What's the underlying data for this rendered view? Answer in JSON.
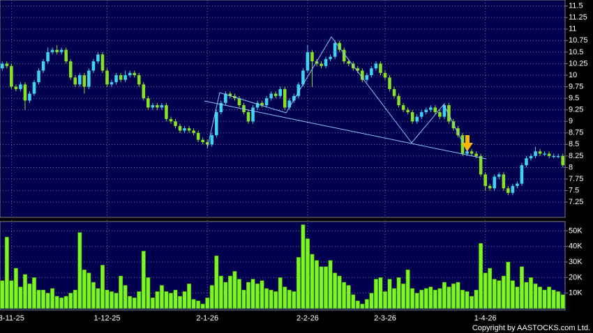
{
  "chart_data": [
    {
      "type": "candlestick",
      "categories": [
        null,
        null,
        "3-11-25",
        null,
        null,
        null,
        null,
        null,
        null,
        null,
        null,
        null,
        null,
        null,
        null,
        null,
        null,
        null,
        null,
        null,
        null,
        null,
        null,
        "1-12-25",
        null,
        null,
        null,
        null,
        null,
        null,
        null,
        null,
        null,
        null,
        null,
        null,
        null,
        null,
        null,
        null,
        null,
        null,
        null,
        null,
        null,
        "2-1-26",
        null,
        null,
        null,
        null,
        null,
        null,
        null,
        null,
        null,
        null,
        null,
        null,
        null,
        null,
        null,
        null,
        null,
        null,
        null,
        null,
        null,
        "2-2-26",
        null,
        null,
        null,
        null,
        null,
        null,
        null,
        null,
        null,
        null,
        null,
        null,
        null,
        null,
        null,
        null,
        "2-3-26",
        null,
        null,
        null,
        null,
        null,
        null,
        null,
        null,
        null,
        null,
        null,
        null,
        null,
        null,
        null,
        null,
        null,
        null,
        null,
        null,
        null,
        "1-4-26",
        null,
        null,
        null,
        null,
        null,
        null,
        null,
        null,
        null,
        null,
        null,
        null,
        null,
        null,
        null,
        null,
        null
      ],
      "open": [
        10.15,
        10.25,
        10.2,
        9.75,
        9.7,
        9.8,
        9.45,
        9.6,
        9.85,
        10.1,
        10.3,
        10.5,
        10.55,
        10.5,
        10.55,
        10.3,
        9.95,
        9.8,
        10.0,
        9.75,
        10.1,
        10.3,
        10.45,
        10.1,
        9.8,
        9.85,
        10.0,
        9.9,
        10.0,
        10.05,
        10.0,
        9.8,
        9.5,
        9.3,
        9.35,
        9.3,
        9.35,
        9.05,
        9.0,
        8.9,
        8.8,
        8.85,
        8.8,
        8.75,
        8.6,
        8.55,
        8.5,
        8.7,
        9.2,
        9.4,
        9.6,
        9.55,
        9.5,
        9.35,
        9.2,
        9.0,
        9.3,
        9.4,
        9.35,
        9.5,
        9.6,
        9.55,
        9.7,
        9.3,
        9.45,
        9.55,
        9.8,
        10.1,
        10.5,
        10.3,
        10.25,
        10.2,
        10.35,
        10.4,
        10.7,
        10.55,
        10.3,
        10.25,
        10.15,
        10.1,
        9.9,
        10.0,
        10.15,
        10.25,
        10.05,
        9.95,
        9.7,
        9.55,
        9.35,
        9.25,
        9.2,
        9.0,
        9.1,
        9.2,
        9.25,
        9.3,
        9.2,
        9.1,
        9.35,
        9.0,
        8.85,
        8.7,
        8.3,
        8.35,
        8.3,
        8.25,
        7.85,
        7.6,
        7.55,
        7.8,
        7.85,
        7.55,
        7.45,
        7.6,
        7.65,
        8.05,
        8.2,
        8.25,
        8.35,
        8.3,
        8.3,
        8.25,
        8.25,
        8.25
      ],
      "high": [
        10.3,
        10.3,
        10.25,
        9.8,
        9.85,
        9.85,
        9.65,
        9.9,
        10.15,
        10.35,
        10.6,
        10.6,
        10.65,
        10.6,
        10.6,
        10.35,
        10.0,
        10.05,
        10.05,
        10.15,
        10.35,
        10.5,
        10.5,
        10.15,
        9.9,
        10.05,
        10.05,
        10.1,
        10.1,
        10.1,
        10.05,
        9.85,
        9.55,
        9.4,
        9.4,
        9.4,
        9.4,
        9.1,
        9.05,
        8.95,
        8.9,
        8.9,
        8.85,
        8.8,
        8.65,
        8.6,
        8.75,
        9.25,
        9.45,
        9.65,
        9.65,
        9.6,
        9.55,
        9.4,
        9.25,
        9.35,
        9.45,
        9.45,
        9.55,
        9.65,
        9.65,
        9.75,
        9.75,
        9.5,
        9.6,
        9.85,
        10.15,
        10.65,
        10.55,
        10.35,
        10.3,
        10.4,
        10.45,
        10.75,
        10.75,
        10.6,
        10.35,
        10.3,
        10.2,
        10.15,
        10.05,
        10.2,
        10.3,
        10.3,
        10.1,
        10.0,
        9.75,
        9.6,
        9.4,
        9.3,
        9.25,
        9.15,
        9.25,
        9.3,
        9.35,
        9.35,
        9.25,
        9.4,
        9.4,
        9.05,
        8.9,
        8.75,
        8.4,
        8.4,
        8.35,
        8.3,
        7.9,
        7.65,
        7.85,
        7.9,
        7.9,
        7.6,
        7.65,
        7.7,
        8.1,
        8.25,
        8.3,
        8.45,
        8.4,
        8.35,
        8.35,
        8.3,
        8.3,
        8.3
      ],
      "low": [
        10.1,
        10.15,
        9.7,
        9.65,
        9.65,
        9.25,
        9.4,
        9.55,
        9.8,
        10.05,
        10.25,
        10.45,
        10.45,
        10.45,
        10.25,
        9.9,
        9.75,
        9.75,
        9.6,
        9.7,
        10.05,
        10.25,
        10.05,
        9.75,
        9.75,
        9.8,
        9.85,
        9.85,
        9.95,
        9.95,
        9.75,
        9.45,
        9.25,
        9.25,
        9.25,
        9.25,
        9.0,
        8.95,
        8.85,
        8.75,
        8.75,
        8.75,
        8.7,
        8.55,
        8.5,
        8.45,
        8.45,
        8.65,
        9.15,
        9.35,
        9.5,
        9.45,
        9.3,
        9.15,
        8.95,
        8.95,
        9.25,
        9.3,
        9.3,
        9.45,
        9.5,
        9.5,
        9.25,
        9.25,
        9.4,
        9.5,
        9.75,
        10.05,
        9.75,
        10.2,
        10.15,
        10.15,
        10.3,
        10.35,
        10.5,
        10.25,
        10.2,
        10.1,
        10.05,
        9.85,
        9.85,
        9.95,
        10.1,
        10.0,
        9.9,
        9.65,
        9.5,
        9.3,
        9.2,
        9.15,
        8.95,
        8.95,
        9.05,
        9.15,
        9.2,
        9.15,
        9.05,
        9.05,
        8.95,
        8.8,
        8.65,
        8.25,
        8.25,
        8.25,
        8.2,
        7.8,
        7.5,
        7.5,
        7.5,
        7.75,
        7.5,
        7.4,
        7.4,
        7.55,
        7.6,
        8.0,
        8.15,
        8.2,
        8.25,
        8.25,
        8.2,
        8.2,
        8.2,
        8.0
      ],
      "close": [
        10.25,
        10.2,
        9.75,
        9.7,
        9.8,
        9.45,
        9.6,
        9.85,
        10.1,
        10.3,
        10.5,
        10.55,
        10.5,
        10.55,
        10.3,
        9.95,
        9.8,
        10.0,
        9.75,
        10.1,
        10.3,
        10.45,
        10.1,
        9.8,
        9.85,
        10.0,
        9.9,
        10.0,
        10.05,
        10.0,
        9.8,
        9.5,
        9.3,
        9.35,
        9.3,
        9.35,
        9.05,
        9.0,
        8.9,
        8.8,
        8.85,
        8.8,
        8.75,
        8.6,
        8.55,
        8.5,
        8.7,
        9.2,
        9.4,
        9.6,
        9.55,
        9.5,
        9.35,
        9.2,
        9.0,
        9.3,
        9.4,
        9.35,
        9.5,
        9.6,
        9.55,
        9.7,
        9.3,
        9.45,
        9.55,
        9.8,
        10.1,
        10.5,
        10.3,
        10.25,
        10.2,
        10.35,
        10.4,
        10.7,
        10.55,
        10.3,
        10.25,
        10.15,
        10.1,
        9.9,
        10.0,
        10.15,
        10.25,
        10.05,
        9.95,
        9.7,
        9.55,
        9.35,
        9.25,
        9.2,
        9.0,
        9.1,
        9.2,
        9.25,
        9.3,
        9.2,
        9.1,
        9.35,
        9.0,
        8.85,
        8.7,
        8.3,
        8.35,
        8.3,
        8.25,
        7.85,
        7.6,
        7.55,
        7.8,
        7.85,
        7.55,
        7.45,
        7.6,
        7.65,
        8.05,
        8.2,
        8.25,
        8.35,
        8.3,
        8.3,
        8.25,
        8.25,
        8.25,
        8.05
      ],
      "up_color": "#3fd2f2",
      "down_color": "#86e226",
      "ylim": [
        6.95,
        11.6
      ],
      "yticks": [
        7.25,
        7.5,
        7.75,
        8,
        8.25,
        8.5,
        8.75,
        9,
        9.25,
        9.5,
        9.75,
        10,
        10.25,
        10.5,
        10.75,
        11,
        11.25,
        11.5
      ],
      "grid": true
    },
    {
      "type": "bar",
      "values": [
        18000,
        46000,
        18000,
        26000,
        14000,
        22000,
        16000,
        20000,
        12000,
        12000,
        10000,
        13000,
        8000,
        7000,
        8000,
        10000,
        12000,
        49000,
        25000,
        23000,
        17000,
        13000,
        28000,
        12000,
        11000,
        10000,
        21000,
        15000,
        8000,
        7000,
        11000,
        37000,
        20000,
        7000,
        11000,
        15000,
        11000,
        10000,
        12000,
        8000,
        11000,
        16000,
        6000,
        5000,
        3000,
        7000,
        15000,
        34000,
        21000,
        17000,
        21000,
        24000,
        19000,
        12000,
        17000,
        19000,
        16000,
        18000,
        13000,
        12000,
        11000,
        20000,
        14000,
        12000,
        11000,
        33000,
        54000,
        45000,
        35000,
        31000,
        27000,
        27000,
        31000,
        23000,
        21000,
        17000,
        15000,
        9000,
        5000,
        3000,
        6000,
        10000,
        19000,
        20000,
        11000,
        19000,
        13000,
        20000,
        16000,
        25000,
        13000,
        10000,
        12000,
        13000,
        14000,
        12000,
        13000,
        17000,
        14000,
        16000,
        17000,
        12000,
        11000,
        8000,
        12000,
        42000,
        23000,
        26000,
        19000,
        18000,
        21000,
        30000,
        18000,
        14000,
        27000,
        17000,
        20000,
        16000,
        14000,
        12000,
        14000,
        12000,
        11000,
        9000
      ],
      "color": "#7cf520",
      "ylim": [
        0,
        56000
      ],
      "yticks": [
        {
          "value": 10000,
          "label": "10K"
        },
        {
          "value": 20000,
          "label": "20K"
        },
        {
          "value": 30000,
          "label": "30K"
        },
        {
          "value": 40000,
          "label": "40K"
        },
        {
          "value": 50000,
          "label": "50K"
        }
      ],
      "grid": true
    }
  ],
  "copyright": "Copyright by AASTOCKS.com Ltd."
}
